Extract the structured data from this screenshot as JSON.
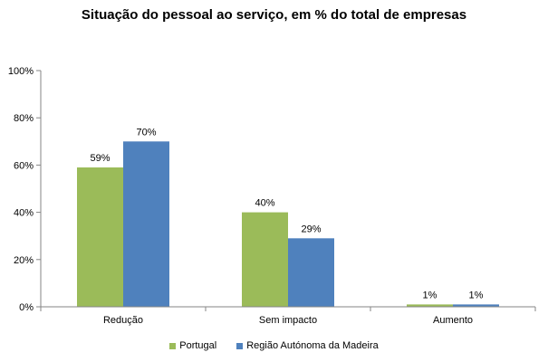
{
  "chart_data": {
    "type": "bar",
    "title": "Situação do pessoal ao serviço, em % do total de empresas",
    "categories": [
      "Redução",
      "Sem impacto",
      "Aumento"
    ],
    "series": [
      {
        "name": "Portugal",
        "values": [
          59,
          40,
          1
        ],
        "labels": [
          "59%",
          "40%",
          "1%"
        ],
        "color": "#9BBB59"
      },
      {
        "name": "Região Autónoma da Madeira",
        "values": [
          70,
          29,
          1
        ],
        "labels": [
          "70%",
          "29%",
          "1%"
        ],
        "color": "#4F81BD"
      }
    ],
    "ylim": [
      0,
      100
    ],
    "yticks": [
      0,
      20,
      40,
      60,
      80,
      100
    ],
    "ytick_labels": [
      "0%",
      "20%",
      "40%",
      "60%",
      "80%",
      "100%"
    ],
    "xlabel": "",
    "ylabel": "",
    "grid": false,
    "legend_position": "bottom",
    "axis_color": "#868686"
  }
}
